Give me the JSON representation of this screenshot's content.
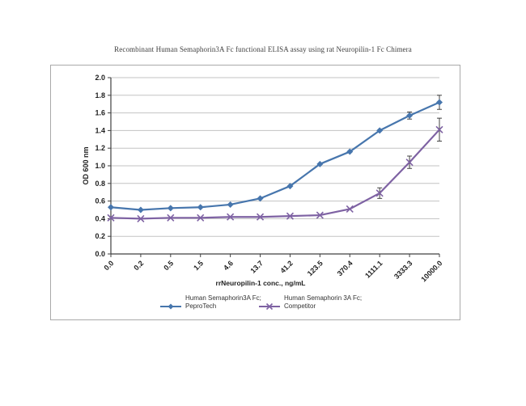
{
  "colors": {
    "series1": "#4776ad",
    "series2": "#7e62a3",
    "gridline": "#c3c3c3",
    "axis": "#404040",
    "frame_border": "#a9a9a9",
    "error_bar": "#404040",
    "text": "#1f1f1f"
  },
  "chart_data": {
    "type": "line",
    "title": "Recombinant Human Semaphorin3A Fc functional ELISA assay using rat Neuropilin-1 Fc Chimera",
    "xlabel": "rrNeuropilin-1 conc., ng/mL",
    "ylabel": "OD 600 nm",
    "categories": [
      "0.0",
      "0.2",
      "0.5",
      "1.5",
      "4.6",
      "13.7",
      "41.2",
      "123.5",
      "370.4",
      "1111.1",
      "3333.3",
      "10000.0"
    ],
    "ylim": [
      0.0,
      2.0
    ],
    "ytick_step": 0.2,
    "ytick_labels": [
      "0.0",
      "0.2",
      "0.4",
      "0.6",
      "0.8",
      "1.0",
      "1.2",
      "1.4",
      "1.6",
      "1.8",
      "2.0"
    ],
    "grid": true,
    "legend_position": "bottom",
    "series": [
      {
        "name_line1": "Human Semaphorin3A Fc;",
        "name_line2": "PeproTech",
        "marker": "diamond",
        "color": "#4776ad",
        "values": [
          0.53,
          0.5,
          0.52,
          0.53,
          0.56,
          0.63,
          0.77,
          1.02,
          1.16,
          1.4,
          1.57,
          1.72
        ],
        "error_bars": [
          0,
          0,
          0,
          0,
          0,
          0,
          0,
          0,
          0,
          0,
          0.04,
          0.08
        ]
      },
      {
        "name_line1": "Human Semaphorin 3A Fc;",
        "name_line2": "Competitor",
        "marker": "x",
        "color": "#7e62a3",
        "values": [
          0.41,
          0.4,
          0.41,
          0.41,
          0.42,
          0.42,
          0.43,
          0.44,
          0.51,
          0.69,
          1.04,
          1.41
        ],
        "error_bars": [
          0,
          0,
          0,
          0,
          0,
          0,
          0,
          0,
          0,
          0.06,
          0.07,
          0.13
        ]
      }
    ]
  }
}
